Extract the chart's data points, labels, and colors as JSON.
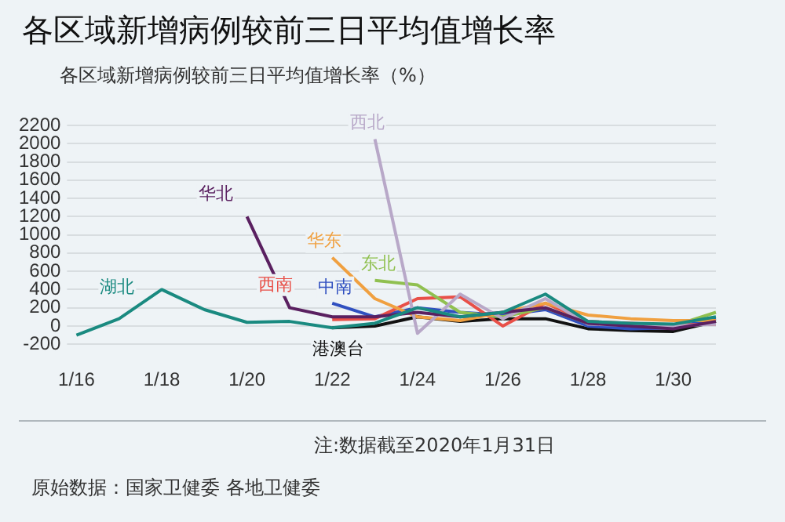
{
  "chart_data": {
    "type": "line",
    "title": "各区域新增病例较前三日平均值增长率",
    "subtitle": "各区域新增病例较前三日平均值增长率（%）",
    "categories": [
      "1/16",
      null,
      "1/18",
      null,
      "1/20",
      null,
      "1/22",
      null,
      "1/24",
      null,
      "1/26",
      null,
      "1/28",
      null,
      "1/30",
      null
    ],
    "series": [
      {
        "name": "湖北",
        "color": "#1a8a80",
        "values": [
          -100,
          80,
          400,
          180,
          40,
          50,
          -20,
          30,
          200,
          100,
          150,
          350,
          50,
          30,
          20,
          100
        ]
      },
      {
        "name": "华北",
        "color": "#5a2060",
        "values": [
          null,
          null,
          null,
          null,
          1200,
          200,
          100,
          100,
          150,
          100,
          150,
          200,
          30,
          0,
          -30,
          50
        ]
      },
      {
        "name": "西北",
        "color": "#b8a8c8",
        "values": [
          null,
          null,
          null,
          null,
          null,
          null,
          null,
          2050,
          -80,
          350,
          80,
          300,
          20,
          10,
          0,
          20
        ]
      },
      {
        "name": "华东",
        "color": "#f0a040",
        "values": [
          null,
          null,
          null,
          null,
          null,
          null,
          750,
          300,
          100,
          60,
          150,
          250,
          120,
          80,
          60,
          60
        ]
      },
      {
        "name": "东北",
        "color": "#90c050",
        "values": [
          null,
          null,
          null,
          null,
          null,
          null,
          null,
          500,
          450,
          150,
          100,
          200,
          30,
          20,
          0,
          150
        ]
      },
      {
        "name": "西南",
        "color": "#e85048",
        "values": [
          null,
          null,
          null,
          null,
          null,
          null,
          70,
          80,
          300,
          320,
          0,
          250,
          50,
          30,
          10,
          20
        ]
      },
      {
        "name": "中南",
        "color": "#3050c0",
        "values": [
          null,
          null,
          null,
          null,
          null,
          null,
          250,
          100,
          200,
          150,
          120,
          180,
          0,
          -30,
          -20,
          80
        ]
      },
      {
        "name": "港澳台",
        "color": "#111111",
        "values": [
          null,
          null,
          null,
          null,
          null,
          null,
          -20,
          0,
          100,
          50,
          80,
          80,
          -30,
          -50,
          -60,
          50
        ]
      }
    ],
    "ylim": [
      -200,
      2200
    ],
    "yticks": [
      -200,
      0,
      200,
      400,
      600,
      800,
      1000,
      1200,
      1400,
      1600,
      1800,
      2000,
      2200
    ],
    "grid": "y",
    "legend": false,
    "marker": "none",
    "line_style": "solid",
    "annotations": [
      "注:数据截至2020年1月31日",
      "原始数据：国家卫健委 各地卫健委"
    ]
  }
}
